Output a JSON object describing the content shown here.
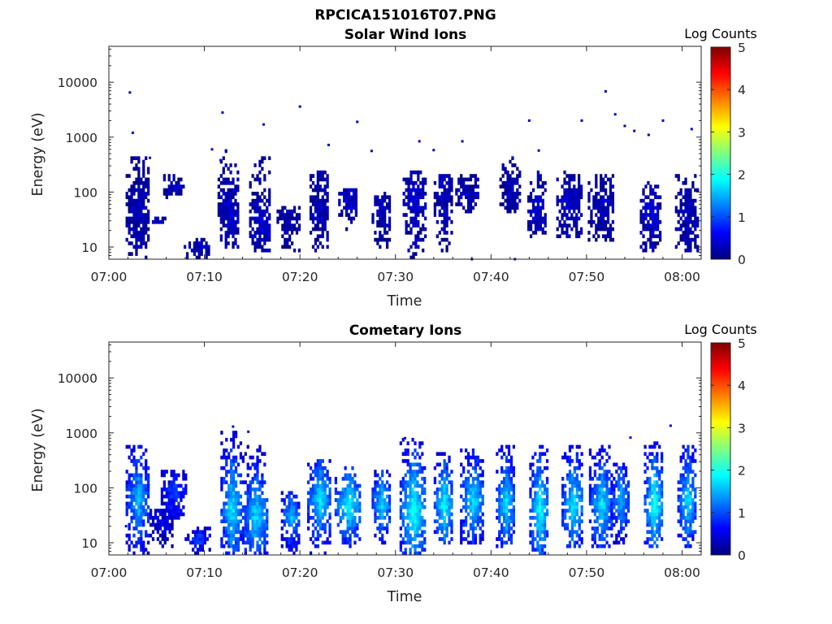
{
  "figure": {
    "title": "RPCICA151016T07.PNG"
  },
  "colors": {
    "scale": [
      "#00007f",
      "#0000ff",
      "#007fff",
      "#00ffff",
      "#7fff7f",
      "#ffff00",
      "#ff7f00",
      "#ff0000",
      "#7f0000"
    ],
    "axis": "#262626",
    "background": "#ffffff"
  },
  "chart_data": [
    {
      "type": "heatmap",
      "title": "Solar Wind Ions",
      "xlabel": "Time",
      "ylabel": "Energy (eV)",
      "x_tick_labels": [
        "07:00",
        "07:10",
        "07:20",
        "07:30",
        "07:40",
        "07:50",
        "08:00"
      ],
      "x_tick_minutes": [
        0,
        10,
        20,
        30,
        40,
        50,
        60
      ],
      "xlim_minutes": [
        0,
        62
      ],
      "y_scale": "log",
      "y_tick_labels": [
        "10",
        "100",
        "1000",
        "10000"
      ],
      "y_tick_values": [
        10,
        100,
        1000,
        10000
      ],
      "ylim": [
        6,
        45000
      ],
      "colorbar": {
        "label": "Log Counts",
        "tick_labels": [
          "0",
          "1",
          "2",
          "3",
          "4",
          "5"
        ],
        "range": [
          0,
          5
        ]
      },
      "bursts": [
        {
          "t": 3.0,
          "e_low": 6,
          "e_high": 450,
          "peak_e": 50,
          "level": 0.3
        },
        {
          "t": 5.0,
          "e_low": 28,
          "e_high": 35,
          "peak_e": 30,
          "level": 0.3
        },
        {
          "t": 6.8,
          "e_low": 80,
          "e_high": 200,
          "peak_e": 120,
          "level": 0.3
        },
        {
          "t": 9.2,
          "e_low": 6,
          "e_high": 15,
          "peak_e": 10,
          "level": 0.3
        },
        {
          "t": 12.5,
          "e_low": 10,
          "e_high": 600,
          "peak_e": 40,
          "level": 0.4
        },
        {
          "t": 15.8,
          "e_low": 8,
          "e_high": 480,
          "peak_e": 30,
          "level": 0.4
        },
        {
          "t": 18.8,
          "e_low": 8,
          "e_high": 60,
          "peak_e": 30,
          "level": 0.3
        },
        {
          "t": 22.0,
          "e_low": 8,
          "e_high": 250,
          "peak_e": 50,
          "level": 0.3
        },
        {
          "t": 25.0,
          "e_low": 20,
          "e_high": 110,
          "peak_e": 70,
          "level": 0.4
        },
        {
          "t": 28.5,
          "e_low": 10,
          "e_high": 100,
          "peak_e": 50,
          "level": 0.3
        },
        {
          "t": 32.0,
          "e_low": 6,
          "e_high": 240,
          "peak_e": 60,
          "level": 0.4
        },
        {
          "t": 35.0,
          "e_low": 6,
          "e_high": 220,
          "peak_e": 80,
          "level": 0.3
        },
        {
          "t": 37.5,
          "e_low": 40,
          "e_high": 210,
          "peak_e": 100,
          "level": 0.3
        },
        {
          "t": 42.0,
          "e_low": 40,
          "e_high": 440,
          "peak_e": 100,
          "level": 0.3
        },
        {
          "t": 44.8,
          "e_low": 15,
          "e_high": 250,
          "peak_e": 40,
          "level": 0.4
        },
        {
          "t": 48.2,
          "e_low": 15,
          "e_high": 240,
          "peak_e": 60,
          "level": 0.4
        },
        {
          "t": 51.5,
          "e_low": 12,
          "e_high": 200,
          "peak_e": 60,
          "level": 0.3
        },
        {
          "t": 56.7,
          "e_low": 8,
          "e_high": 160,
          "peak_e": 40,
          "level": 0.5
        },
        {
          "t": 60.5,
          "e_low": 8,
          "e_high": 200,
          "peak_e": 30,
          "level": 0.3
        }
      ],
      "points": [
        {
          "t": 2.2,
          "e": 6500,
          "level": 0.3
        },
        {
          "t": 2.5,
          "e": 1200,
          "level": 0.3
        },
        {
          "t": 4.3,
          "e": 420,
          "level": 0.3
        },
        {
          "t": 10.8,
          "e": 600,
          "level": 0.3
        },
        {
          "t": 11.7,
          "e": 380,
          "level": 0.3
        },
        {
          "t": 11.9,
          "e": 2800,
          "level": 0.3
        },
        {
          "t": 16.2,
          "e": 1700,
          "level": 0.3
        },
        {
          "t": 20.0,
          "e": 3600,
          "level": 0.3
        },
        {
          "t": 23.0,
          "e": 720,
          "level": 0.3
        },
        {
          "t": 26.0,
          "e": 1900,
          "level": 0.3
        },
        {
          "t": 27.5,
          "e": 560,
          "level": 0.3
        },
        {
          "t": 32.5,
          "e": 840,
          "level": 0.3
        },
        {
          "t": 34.0,
          "e": 580,
          "level": 0.3
        },
        {
          "t": 37.0,
          "e": 840,
          "level": 0.3
        },
        {
          "t": 44.0,
          "e": 2000,
          "level": 0.3
        },
        {
          "t": 45.0,
          "e": 570,
          "level": 0.3
        },
        {
          "t": 49.5,
          "e": 2000,
          "level": 0.3
        },
        {
          "t": 52.0,
          "e": 6800,
          "level": 0.3
        },
        {
          "t": 53.0,
          "e": 2600,
          "level": 0.3
        },
        {
          "t": 54.0,
          "e": 1600,
          "level": 0.3
        },
        {
          "t": 55.0,
          "e": 1300,
          "level": 0.3
        },
        {
          "t": 56.5,
          "e": 1100,
          "level": 0.3
        },
        {
          "t": 58.0,
          "e": 2000,
          "level": 0.3
        },
        {
          "t": 61.0,
          "e": 1400,
          "level": 0.3
        },
        {
          "t": 38.0,
          "e": 6,
          "level": 0.3
        },
        {
          "t": 42.5,
          "e": 6,
          "level": 0.3
        }
      ]
    },
    {
      "type": "heatmap",
      "title": "Cometary Ions",
      "xlabel": "Time",
      "ylabel": "Energy (eV)",
      "x_tick_labels": [
        "07:00",
        "07:10",
        "07:20",
        "07:30",
        "07:40",
        "07:50",
        "08:00"
      ],
      "x_tick_minutes": [
        0,
        10,
        20,
        30,
        40,
        50,
        60
      ],
      "xlim_minutes": [
        0,
        62
      ],
      "y_scale": "log",
      "y_tick_labels": [
        "10",
        "100",
        "1000",
        "10000"
      ],
      "y_tick_values": [
        10,
        100,
        1000,
        10000
      ],
      "ylim": [
        6,
        45000
      ],
      "colorbar": {
        "label": "Log Counts",
        "tick_labels": [
          "0",
          "1",
          "2",
          "3",
          "4",
          "5"
        ],
        "range": [
          0,
          5
        ]
      },
      "bursts": [
        {
          "t": 3.0,
          "e_low": 6,
          "e_high": 560,
          "peak_e": 60,
          "level": 1.6
        },
        {
          "t": 5.5,
          "e_low": 8,
          "e_high": 40,
          "peak_e": 25,
          "level": 0.6
        },
        {
          "t": 6.8,
          "e_low": 20,
          "e_high": 220,
          "peak_e": 80,
          "level": 1.0
        },
        {
          "t": 9.3,
          "e_low": 6,
          "e_high": 20,
          "peak_e": 12,
          "level": 1.0
        },
        {
          "t": 12.8,
          "e_low": 6,
          "e_high": 1300,
          "peak_e": 40,
          "level": 1.8
        },
        {
          "t": 15.3,
          "e_low": 6,
          "e_high": 560,
          "peak_e": 30,
          "level": 1.8
        },
        {
          "t": 19.0,
          "e_low": 6,
          "e_high": 90,
          "peak_e": 30,
          "level": 1.6
        },
        {
          "t": 22.0,
          "e_low": 6,
          "e_high": 330,
          "peak_e": 60,
          "level": 1.8
        },
        {
          "t": 25.0,
          "e_low": 8,
          "e_high": 240,
          "peak_e": 50,
          "level": 2.0
        },
        {
          "t": 28.5,
          "e_low": 10,
          "e_high": 220,
          "peak_e": 50,
          "level": 1.8
        },
        {
          "t": 31.8,
          "e_low": 6,
          "e_high": 800,
          "peak_e": 40,
          "level": 2.1
        },
        {
          "t": 35.0,
          "e_low": 10,
          "e_high": 450,
          "peak_e": 50,
          "level": 2.0
        },
        {
          "t": 38.0,
          "e_low": 10,
          "e_high": 500,
          "peak_e": 60,
          "level": 1.8
        },
        {
          "t": 41.5,
          "e_low": 8,
          "e_high": 600,
          "peak_e": 50,
          "level": 1.8
        },
        {
          "t": 45.0,
          "e_low": 6,
          "e_high": 800,
          "peak_e": 40,
          "level": 2.0
        },
        {
          "t": 48.5,
          "e_low": 8,
          "e_high": 600,
          "peak_e": 50,
          "level": 1.9
        },
        {
          "t": 51.5,
          "e_low": 8,
          "e_high": 560,
          "peak_e": 50,
          "level": 1.8
        },
        {
          "t": 53.5,
          "e_low": 10,
          "e_high": 280,
          "peak_e": 60,
          "level": 1.6
        },
        {
          "t": 57.0,
          "e_low": 8,
          "e_high": 700,
          "peak_e": 50,
          "level": 2.1
        },
        {
          "t": 60.5,
          "e_low": 8,
          "e_high": 600,
          "peak_e": 60,
          "level": 1.8
        }
      ],
      "points": [
        {
          "t": 13.0,
          "e": 1300,
          "level": 0.5
        },
        {
          "t": 14.6,
          "e": 1050,
          "level": 0.5
        },
        {
          "t": 31.0,
          "e": 800,
          "level": 0.5
        },
        {
          "t": 58.8,
          "e": 1350,
          "level": 0.5
        },
        {
          "t": 54.6,
          "e": 820,
          "level": 0.5
        },
        {
          "t": 1.8,
          "e": 20,
          "level": 0.5
        }
      ]
    }
  ]
}
